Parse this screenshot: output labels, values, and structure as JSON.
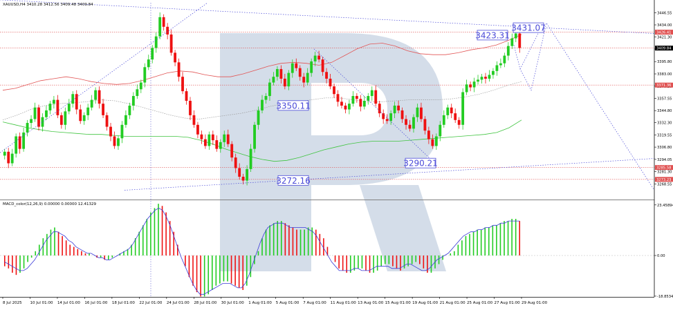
{
  "header": {
    "symbol_text": "XAUUSD,H4  3410.28 3412.56 3409.48 3409.84",
    "indicator_text": "MACD_color(12,26,9) 0.00000 0.00000 12.41329"
  },
  "colors": {
    "bull": "#22cc22",
    "bear": "#ee1111",
    "ma_red": "#e25555",
    "ma_green": "#3ec43e",
    "ma_gray": "#9a9a9a",
    "forecast": "#4a4ad8",
    "level": "#e05050",
    "macd_signal": "#3a3ad8",
    "watermark": "#c5d2e2"
  },
  "chart_data": [
    {
      "type": "candlestick",
      "title": "XAUUSD,H4",
      "ylim": [
        3253.0,
        3457.0
      ],
      "price_axis_ticks": [
        "3446.55",
        "3434.00",
        "3421.30",
        "3408.84",
        "3395.80",
        "3383.00",
        "3370.20",
        "3357.55",
        "3344.80",
        "3332.30",
        "3319.55",
        "3306.80",
        "3294.05",
        "3281.30",
        "3268.55"
      ],
      "price_tags": [
        {
          "label": "3426.41",
          "value": 3426.41
        },
        {
          "label": "3409.84",
          "value": 3409.84,
          "current": true
        },
        {
          "label": "3371.36",
          "value": 3371.36
        },
        {
          "label": "3285.58",
          "value": 3285.58
        },
        {
          "label": "3273.23",
          "value": 3273.23
        }
      ],
      "x_labels": [
        "8 Jul 2025",
        "10 Jul 01:00",
        "14 Jul 01:00",
        "16 Jul 01:00",
        "18 Jul 01:00",
        "22 Jul 01:00",
        "24 Jul 01:00",
        "28 Jul 01:00",
        "30 Jul 01:00",
        "1 Aug 01:00",
        "5 Aug 01:00",
        "7 Aug 01:00",
        "11 Aug 01:00",
        "13 Aug 01:00",
        "15 Aug 01:00",
        "19 Aug 01:00",
        "21 Aug 01:00",
        "25 Aug 01:00",
        "27 Aug 01:00",
        "29 Aug 01:00"
      ],
      "closes": [
        3302,
        3290,
        3300,
        3318,
        3305,
        3322,
        3332,
        3336,
        3348,
        3328,
        3338,
        3345,
        3352,
        3356,
        3340,
        3330,
        3344,
        3352,
        3362,
        3346,
        3334,
        3340,
        3348,
        3356,
        3366,
        3352,
        3340,
        3328,
        3318,
        3308,
        3316,
        3330,
        3340,
        3350,
        3360,
        3367,
        3374,
        3390,
        3398,
        3410,
        3422,
        3442,
        3432,
        3424,
        3405,
        3395,
        3380,
        3365,
        3355,
        3340,
        3330,
        3320,
        3315,
        3308,
        3320,
        3314,
        3305,
        3312,
        3320,
        3310,
        3296,
        3285,
        3276,
        3272,
        3284,
        3305,
        3330,
        3345,
        3356,
        3360,
        3374,
        3380,
        3388,
        3378,
        3370,
        3384,
        3394,
        3389,
        3380,
        3374,
        3384,
        3396,
        3402,
        3398,
        3385,
        3378,
        3370,
        3362,
        3354,
        3350,
        3346,
        3352,
        3360,
        3357,
        3349,
        3355,
        3360,
        3366,
        3352,
        3342,
        3336,
        3334,
        3342,
        3350,
        3345,
        3336,
        3330,
        3326,
        3338,
        3348,
        3336,
        3324,
        3315,
        3308,
        3318,
        3330,
        3340,
        3348,
        3342,
        3335,
        3330,
        3364,
        3372,
        3369,
        3375,
        3377,
        3380,
        3378,
        3382,
        3386,
        3392,
        3394,
        3402,
        3412,
        3420,
        3425,
        3410
      ],
      "indicators": [
        {
          "name": "MA red",
          "values": [
            3366,
            3368,
            3372,
            3376,
            3378,
            3380,
            3378,
            3375,
            3373,
            3372,
            3373,
            3376,
            3380,
            3384,
            3386,
            3385,
            3382,
            3380,
            3380,
            3383,
            3387,
            3391,
            3394,
            3395,
            3394,
            3392,
            3395,
            3402,
            3409,
            3414,
            3415,
            3412,
            3407,
            3404,
            3403,
            3403,
            3405,
            3408,
            3410,
            3413,
            3418,
            3424
          ]
        },
        {
          "name": "MA green",
          "values": [
            3333,
            3330,
            3327,
            3325,
            3323,
            3322,
            3321,
            3320,
            3320,
            3319,
            3318,
            3318,
            3318,
            3318,
            3318,
            3317,
            3314,
            3310,
            3305,
            3301,
            3297,
            3294,
            3292,
            3293,
            3296,
            3300,
            3304,
            3307,
            3310,
            3312,
            3313,
            3313,
            3313,
            3314,
            3315,
            3316,
            3317,
            3318,
            3319,
            3320,
            3322,
            3327,
            3335
          ]
        },
        {
          "name": "MA gray",
          "values": [
            3335,
            3340,
            3346,
            3350,
            3352,
            3353,
            3354,
            3356,
            3355,
            3352,
            3348,
            3344,
            3340,
            3337,
            3336,
            3338,
            3340,
            3342,
            3345,
            3349,
            3352,
            3354,
            3356,
            3358,
            3358,
            3356,
            3354,
            3354,
            3355,
            3356,
            3356,
            3356,
            3357,
            3359,
            3362,
            3366,
            3371,
            3375
          ]
        }
      ],
      "annotations": [
        {
          "label": "3423.31",
          "value": 3423.31
        },
        {
          "label": "3431.07",
          "value": 3431.07
        },
        {
          "label": "3350.11",
          "value": 3350.11
        },
        {
          "label": "3290.21",
          "value": 3290.21
        },
        {
          "label": "3272.16",
          "value": 3272.16
        }
      ],
      "forecast_path": [
        3413,
        3388,
        3366,
        3428,
        3436,
        3360,
        3290,
        3262
      ]
    },
    {
      "type": "bar",
      "title": "MACD_color(12,26,9)",
      "ylim": [
        -19.2,
        25.0
      ],
      "axis_ticks": [
        {
          "label": "23.45894",
          "value": 23.45894
        },
        {
          "label": "0.00",
          "value": 0.0
        },
        {
          "label": "-18.85345",
          "value": -18.85345
        }
      ],
      "histogram": [
        -5,
        -6,
        -8,
        -9,
        -8,
        -6,
        -3,
        -1,
        2,
        5,
        8,
        10,
        12,
        13,
        11,
        9,
        7,
        5,
        4,
        3,
        2,
        1,
        1,
        0,
        -1,
        -1,
        -2,
        -2,
        -1,
        0,
        1,
        2,
        3,
        5,
        8,
        11,
        14,
        17,
        20,
        22,
        24,
        23,
        20,
        16,
        11,
        5,
        0,
        -5,
        -10,
        -14,
        -17,
        -19,
        -19,
        -18,
        -16,
        -14,
        -13,
        -12,
        -12,
        -13,
        -14,
        -15,
        -16,
        -14,
        -10,
        -4,
        2,
        8,
        12,
        14,
        15,
        16,
        16,
        15,
        14,
        13,
        12,
        12,
        12,
        13,
        13,
        12,
        10,
        8,
        4,
        0,
        -3,
        -6,
        -7,
        -8,
        -8,
        -7,
        -6,
        -6,
        -7,
        -8,
        -8,
        -7,
        -5,
        -4,
        -4,
        -5,
        -6,
        -7,
        -6,
        -5,
        -4,
        -3,
        -4,
        -6,
        -8,
        -8,
        -6,
        -4,
        -2,
        0,
        1,
        2,
        5,
        7,
        9,
        10,
        11,
        12,
        12,
        13,
        13,
        14,
        14,
        15,
        16,
        16,
        17,
        17,
        16
      ],
      "signal": [
        -3,
        -4,
        -5,
        -6,
        -7,
        -7,
        -6,
        -4,
        -2,
        1,
        4,
        7,
        9,
        11,
        11,
        10,
        9,
        7,
        6,
        4,
        3,
        2,
        1,
        1,
        0,
        -1,
        -1,
        -2,
        -2,
        -1,
        0,
        1,
        2,
        3,
        5,
        8,
        11,
        14,
        17,
        19,
        21,
        22,
        21,
        18,
        14,
        9,
        4,
        -1,
        -5,
        -9,
        -13,
        -16,
        -18,
        -18,
        -17,
        -16,
        -15,
        -14,
        -13,
        -13,
        -13,
        -14,
        -15,
        -15,
        -13,
        -9,
        -4,
        1,
        6,
        10,
        13,
        14,
        15,
        15,
        15,
        14,
        13,
        13,
        13,
        13,
        13,
        12,
        11,
        9,
        6,
        3,
        0,
        -3,
        -5,
        -7,
        -7,
        -7,
        -7,
        -6,
        -6,
        -7,
        -7,
        -7,
        -6,
        -5,
        -5,
        -5,
        -5,
        -6,
        -6,
        -6,
        -5,
        -4,
        -4,
        -5,
        -6,
        -7,
        -7,
        -6,
        -4,
        -2,
        -1,
        0,
        1,
        3,
        5,
        7,
        9,
        10,
        11,
        11,
        12,
        12,
        13,
        13,
        14,
        14,
        15,
        15,
        16,
        16,
        16,
        16
      ]
    }
  ]
}
